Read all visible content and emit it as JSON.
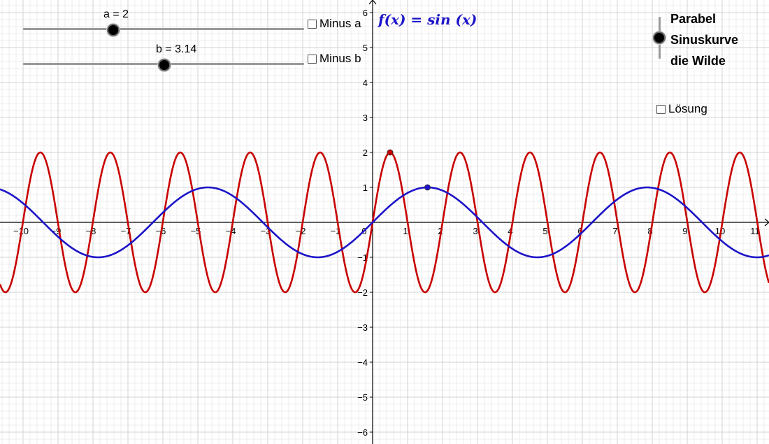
{
  "sliders": [
    {
      "label": "a = 2",
      "value": 2
    },
    {
      "label": "b = 3.14",
      "value": 3.14
    }
  ],
  "checkboxes": {
    "minus_a": "Minus a",
    "minus_b": "Minus b",
    "loesung": "Lösung"
  },
  "radio": {
    "selected_index": 1,
    "options": [
      "Parabel",
      "Sinuskurve",
      "die Wilde"
    ]
  },
  "function_label": "f(x) = sin (x)",
  "colors": {
    "grid": "#d3d3d3",
    "axis": "#000000",
    "red_curve": "#c80000",
    "blue_curve": "#1c14c8"
  },
  "chart_data": {
    "type": "line",
    "xlim": [
      -10.6,
      11.3
    ],
    "ylim": [
      -6.3,
      6.4
    ],
    "grid": true,
    "x_ticks": [
      -10,
      -9,
      -8,
      -7,
      -6,
      -5,
      -4,
      -3,
      -2,
      -1,
      1,
      2,
      3,
      4,
      5,
      6,
      7,
      8,
      9,
      10,
      11
    ],
    "y_ticks": [
      -6,
      -5,
      -4,
      -3,
      -2,
      -1,
      1,
      2,
      3,
      4,
      5,
      6
    ],
    "origin_label": "0",
    "series": [
      {
        "expression": "2*sin(3.14*x)",
        "amplitude": 2,
        "frequency": 3.14,
        "color": "#c80000"
      },
      {
        "expression": "sin(x)",
        "amplitude": 1,
        "frequency": 1,
        "color": "#1c14c8"
      }
    ],
    "points": [
      {
        "x": 0.5,
        "y": 2,
        "color": "#c80000"
      },
      {
        "x": 1.5708,
        "y": 1,
        "color": "#1c14c8"
      }
    ]
  }
}
